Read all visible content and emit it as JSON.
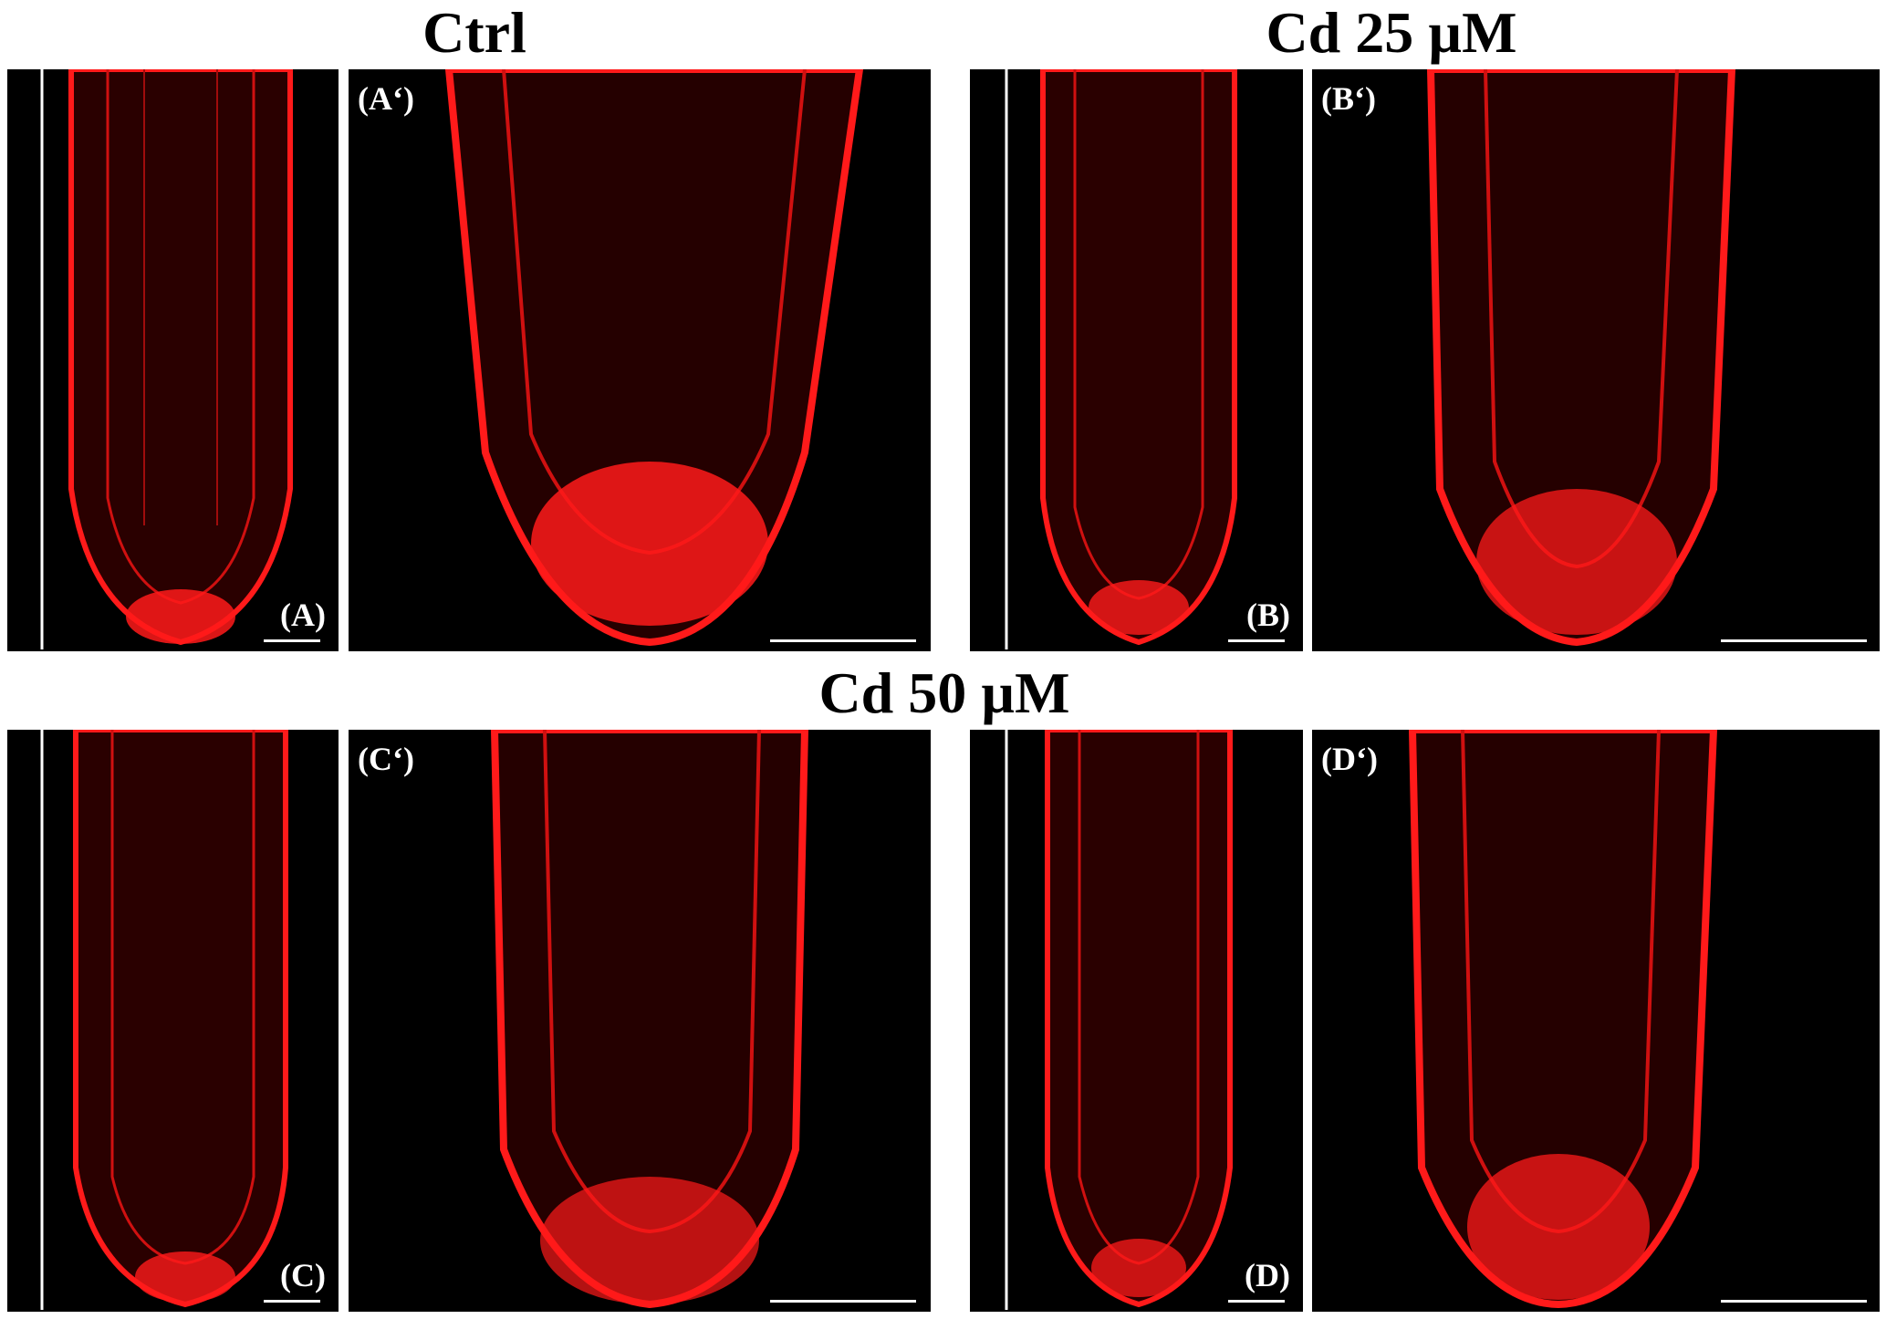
{
  "headings": {
    "ctrl": "Ctrl",
    "cd25": "Cd 25 µM",
    "cd50": "Cd 50 µM"
  },
  "panels": {
    "A": "(A)",
    "A_prime": "(A‘)",
    "B": "(B)",
    "B_prime": "(B‘)",
    "C": "(C)",
    "C_prime": "(C‘)",
    "D": "(D)",
    "D_prime": "(D‘)"
  },
  "colors": {
    "background": "#ffffff",
    "panel_background": "#000000",
    "stain": "#ff1a1a",
    "label": "#ffffff"
  }
}
